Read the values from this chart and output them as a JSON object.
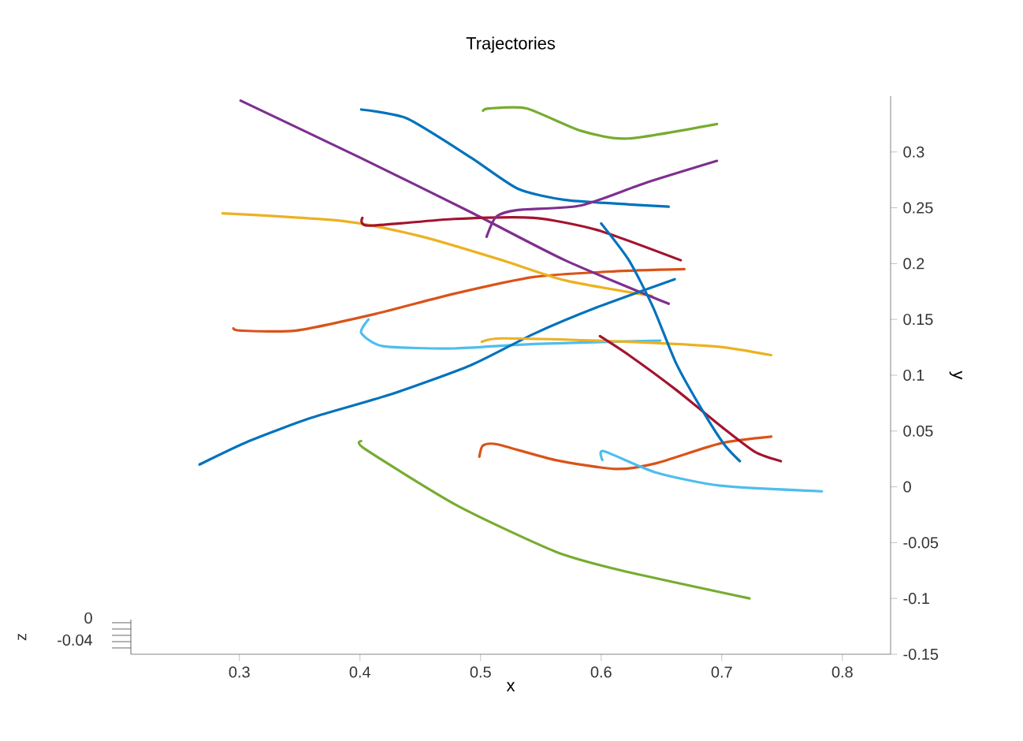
{
  "chart_data": {
    "type": "line",
    "title": "Trajectories",
    "xlabel": "x",
    "ylabel": "y",
    "annotations": [
      "z",
      "0",
      "-0.04"
    ],
    "xlim": [
      0.21,
      0.84
    ],
    "ylim": [
      -0.15,
      0.35
    ],
    "xticks": [
      0.3,
      0.4,
      0.5,
      0.6,
      0.7,
      0.8
    ],
    "yticks": [
      -0.15,
      -0.1,
      -0.05,
      0,
      0.05,
      0.1,
      0.15,
      0.2,
      0.25,
      0.3
    ],
    "marker": "none",
    "line_style": "solid",
    "series": [
      {
        "color": "#0072bd",
        "x": [
          0.401,
          0.439,
          0.492,
          0.531,
          0.57,
          0.623,
          0.656
        ],
        "values": [
          0.338,
          0.33,
          0.295,
          0.267,
          0.257,
          0.253,
          0.251
        ]
      },
      {
        "color": "#d95319",
        "x": [
          0.295,
          0.301,
          0.347,
          0.413,
          0.478,
          0.544,
          0.61,
          0.669
        ],
        "values": [
          0.142,
          0.14,
          0.14,
          0.155,
          0.173,
          0.188,
          0.193,
          0.195
        ]
      },
      {
        "color": "#edb120",
        "x": [
          0.286,
          0.387,
          0.452,
          0.518,
          0.57,
          0.642
        ],
        "values": [
          0.245,
          0.238,
          0.224,
          0.203,
          0.185,
          0.171
        ]
      },
      {
        "color": "#7e2f8e",
        "x": [
          0.301,
          0.4,
          0.492,
          0.57,
          0.656
        ],
        "values": [
          0.346,
          0.295,
          0.246,
          0.203,
          0.164
        ]
      },
      {
        "color": "#77ac30",
        "x": [
          0.502,
          0.507,
          0.538,
          0.583,
          0.622,
          0.696
        ],
        "values": [
          0.337,
          0.339,
          0.339,
          0.319,
          0.312,
          0.325
        ]
      },
      {
        "color": "#4dbeee",
        "x": [
          0.407,
          0.401,
          0.419,
          0.478,
          0.544,
          0.649
        ],
        "values": [
          0.15,
          0.138,
          0.126,
          0.124,
          0.128,
          0.131
        ]
      },
      {
        "color": "#a2142f",
        "x": [
          0.402,
          0.407,
          0.478,
          0.544,
          0.597,
          0.666
        ],
        "values": [
          0.241,
          0.234,
          0.24,
          0.241,
          0.23,
          0.203
        ]
      },
      {
        "color": "#0072bd",
        "x": [
          0.267,
          0.308,
          0.36,
          0.426,
          0.492,
          0.544,
          0.597,
          0.661
        ],
        "values": [
          0.02,
          0.041,
          0.062,
          0.083,
          0.109,
          0.137,
          0.161,
          0.186
        ]
      },
      {
        "color": "#d95319",
        "x": [
          0.499,
          0.502,
          0.514,
          0.562,
          0.612,
          0.645,
          0.699,
          0.741
        ],
        "values": [
          0.027,
          0.037,
          0.038,
          0.024,
          0.016,
          0.021,
          0.039,
          0.045
        ]
      },
      {
        "color": "#edb120",
        "x": [
          0.501,
          0.518,
          0.597,
          0.662,
          0.702,
          0.741
        ],
        "values": [
          0.13,
          0.133,
          0.131,
          0.128,
          0.125,
          0.118
        ]
      },
      {
        "color": "#7e2f8e",
        "x": [
          0.505,
          0.513,
          0.531,
          0.583,
          0.636,
          0.696
        ],
        "values": [
          0.224,
          0.242,
          0.248,
          0.252,
          0.272,
          0.292
        ]
      },
      {
        "color": "#77ac30",
        "x": [
          0.401,
          0.404,
          0.481,
          0.562,
          0.617,
          0.723
        ],
        "values": [
          0.041,
          0.034,
          -0.017,
          -0.058,
          -0.075,
          -0.1
        ]
      },
      {
        "color": "#4dbeee",
        "x": [
          0.601,
          0.602,
          0.645,
          0.699,
          0.783
        ],
        "values": [
          0.024,
          0.032,
          0.013,
          0.001,
          -0.004
        ]
      },
      {
        "color": "#a2142f",
        "x": [
          0.599,
          0.623,
          0.662,
          0.702,
          0.728,
          0.749
        ],
        "values": [
          0.135,
          0.118,
          0.087,
          0.052,
          0.031,
          0.023
        ]
      },
      {
        "color": "#0072bd",
        "x": [
          0.6,
          0.623,
          0.643,
          0.662,
          0.682,
          0.702,
          0.715
        ],
        "values": [
          0.236,
          0.203,
          0.161,
          0.111,
          0.072,
          0.038,
          0.023
        ]
      }
    ]
  }
}
